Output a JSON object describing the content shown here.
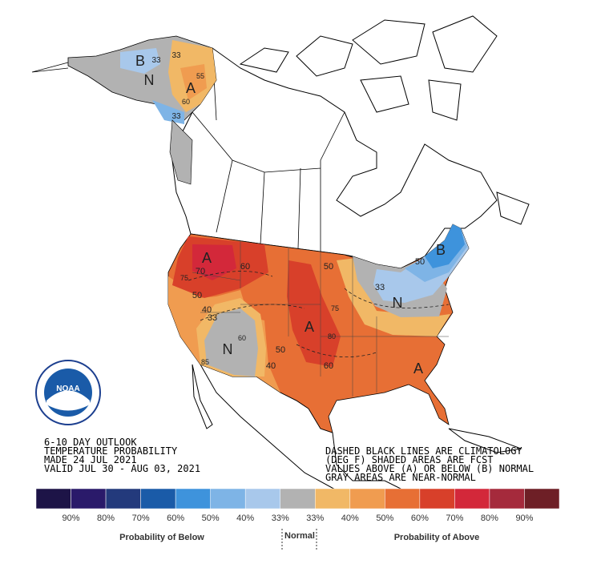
{
  "header": {
    "lines": [
      "6-10 DAY OUTLOOK",
      "TEMPERATURE PROBABILITY",
      "MADE  24 JUL 2021",
      "VALID  JUL 30 - AUG 03, 2021"
    ]
  },
  "note": {
    "lines": [
      "DASHED BLACK LINES ARE CLIMATOLOGY",
      "(DEG F) SHADED AREAS ARE FCST",
      "VALUES ABOVE (A) OR BELOW (B) NORMAL",
      "GRAY AREAS ARE NEAR-NORMAL"
    ]
  },
  "logo_text": "NOAA",
  "map_labels": [
    "B",
    "N",
    "A",
    "33",
    "33",
    "55",
    "60",
    "33",
    "A",
    "70",
    "60",
    "50",
    "50",
    "75",
    "40",
    "33",
    "N",
    "A",
    "75",
    "60",
    "50",
    "40",
    "50",
    "33",
    "N",
    "B",
    "60",
    "A",
    "80",
    "85"
  ],
  "legend": {
    "colors": [
      "#1d1447",
      "#2a1a6a",
      "#233a7c",
      "#1a5ba8",
      "#3e93dc",
      "#7eb4e6",
      "#a8c8eb",
      "#b2b2b2",
      "#f1b866",
      "#f09c50",
      "#e76f35",
      "#d8402a",
      "#d3283a",
      "#a52a3c",
      "#6e1f26"
    ],
    "ticks": [
      "90%",
      "80%",
      "70%",
      "60%",
      "50%",
      "40%",
      "33%",
      "33%",
      "40%",
      "50%",
      "60%",
      "70%",
      "80%",
      "90%"
    ],
    "below_title": "Probability of Below",
    "normal_title": "Normal",
    "above_title": "Probability of Above"
  }
}
